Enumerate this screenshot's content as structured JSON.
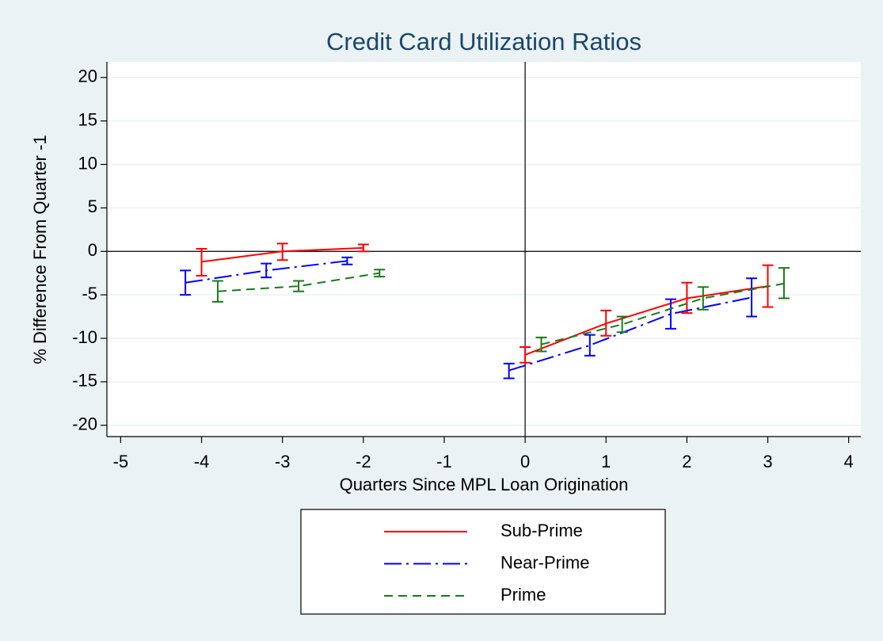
{
  "chart_data": {
    "type": "line",
    "title": "Credit Card Utilization Ratios",
    "xlabel": "Quarters Since MPL Loan Origination",
    "ylabel": "% Difference From Quarter -1",
    "xlim": [
      -5.17,
      4.15
    ],
    "ylim": [
      -21.3,
      21.8
    ],
    "xticks": [
      -5,
      -4,
      -3,
      -2,
      -1,
      0,
      1,
      2,
      3,
      4
    ],
    "yticks": [
      -20,
      -15,
      -10,
      -5,
      0,
      5,
      10,
      15,
      20
    ],
    "grid": true,
    "reference_lines": {
      "x": 0,
      "y": 0
    },
    "legend": "bottom",
    "series": [
      {
        "name": "Sub-Prime",
        "color": "#ff0000",
        "dash": "solid",
        "x": [
          -4,
          -3,
          -2,
          null,
          0,
          1,
          2,
          3
        ],
        "values": [
          -1.2,
          0,
          0.4,
          null,
          -11.9,
          -8.3,
          -5.4,
          -4
        ],
        "ci_low": [
          -2.8,
          -1,
          0,
          null,
          -12.8,
          -9.7,
          -7.1,
          -6.4
        ],
        "ci_high": [
          0.3,
          0.9,
          0.8,
          null,
          -11,
          -6.8,
          -3.6,
          -1.6
        ]
      },
      {
        "name": "Near-Prime",
        "color": "#0000ff",
        "dash": "dashdot",
        "x": [
          -4.2,
          -3.2,
          -2.2,
          null,
          -0.2,
          0.8,
          1.8,
          2.8
        ],
        "values": [
          -3.6,
          -2.2,
          -1.1,
          null,
          -13.7,
          -10.8,
          -7.2,
          -5.3
        ],
        "ci_low": [
          -5,
          -3,
          -1.5,
          null,
          -14.6,
          -12,
          -8.9,
          -7.5
        ],
        "ci_high": [
          -2.2,
          -1.4,
          -0.7,
          null,
          -12.9,
          -9.6,
          -5.5,
          -3.1
        ]
      },
      {
        "name": "Prime",
        "color": "#187c18",
        "dash": "dashed",
        "x": [
          -3.8,
          -2.8,
          -1.8,
          null,
          0.2,
          1.2,
          2.2,
          3.2
        ],
        "values": [
          -4.6,
          -4,
          -2.5,
          null,
          -10.7,
          -8.4,
          -5.4,
          -3.7
        ],
        "ci_low": [
          -5.8,
          -4.6,
          -2.9,
          null,
          -11.5,
          -9.3,
          -6.7,
          -5.4
        ],
        "ci_high": [
          -3.4,
          -3.4,
          -2.1,
          null,
          -9.9,
          -7.5,
          -4.1,
          -1.9
        ]
      }
    ]
  }
}
